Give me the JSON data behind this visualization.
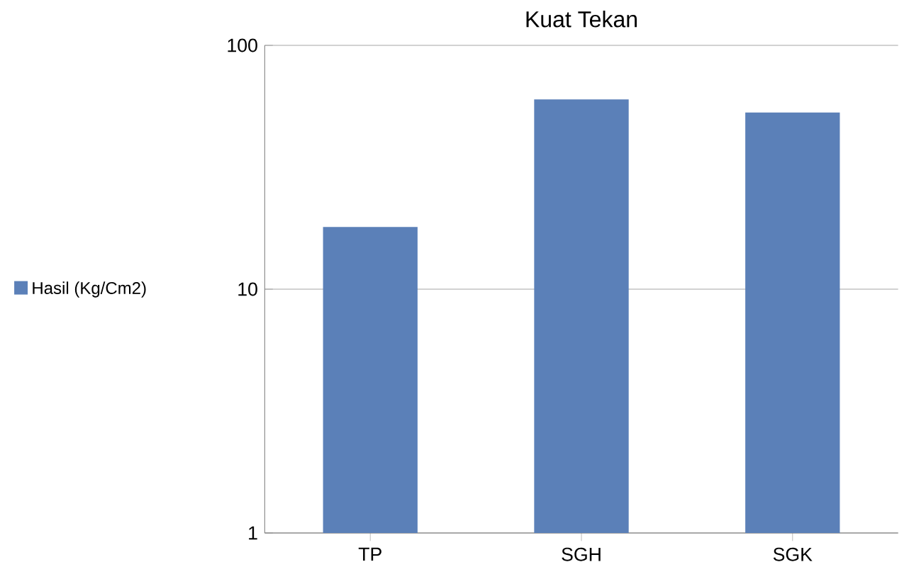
{
  "chart_data": {
    "type": "bar",
    "title": "Kuat Tekan",
    "categories": [
      "TP",
      "SGH",
      "SGK"
    ],
    "series": [
      {
        "name": "Hasil (Kg/Cm2)",
        "color": "#5b80b8",
        "values": [
          18,
          60,
          53
        ]
      }
    ],
    "log": "y",
    "ylim": [
      1,
      100
    ],
    "yticks": [
      1,
      10,
      100
    ],
    "grid": "y",
    "legend": "left"
  }
}
